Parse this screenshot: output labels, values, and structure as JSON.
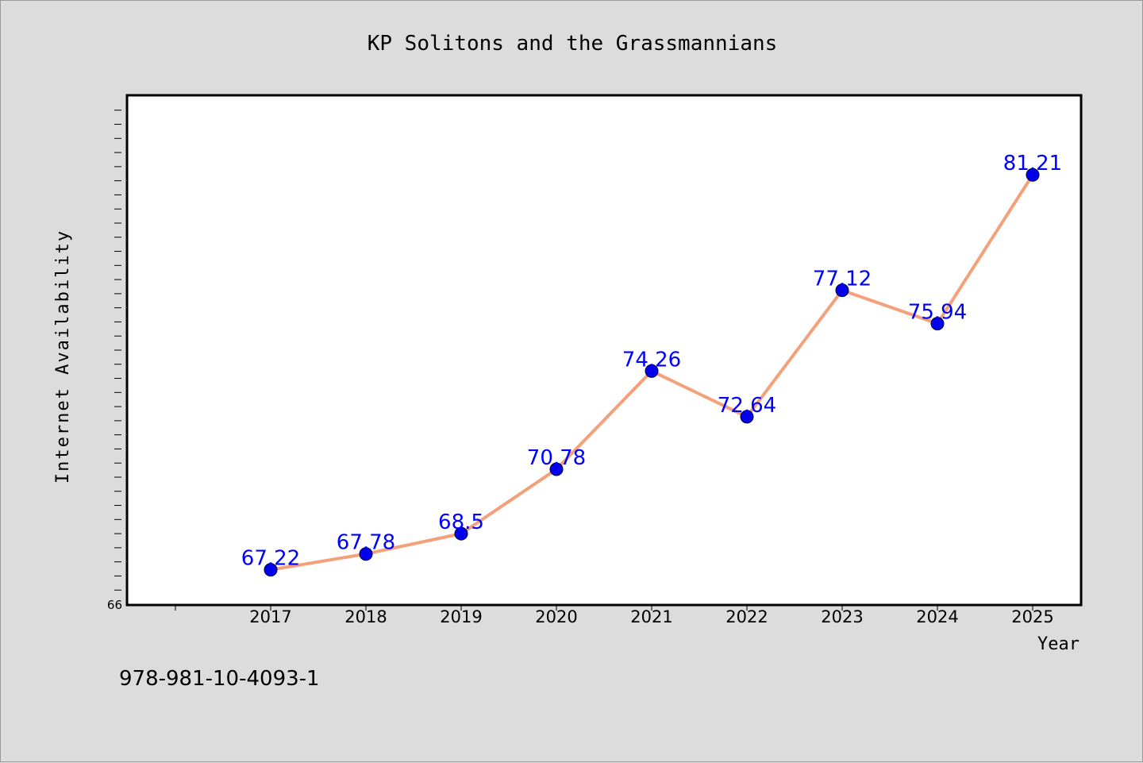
{
  "footer": {
    "isbn": "978-981-10-4093-1"
  },
  "colors": {
    "background": "#dcdcdc",
    "plot_background": "#ffffff",
    "line": "#f4a07a",
    "marker": "#0000ee",
    "data_label": "#0000ff"
  },
  "chart_data": {
    "type": "line",
    "title": "KP Solitons and the Grassmannians",
    "xlabel": "Year",
    "ylabel": "Internet Availability",
    "categories": [
      "2017",
      "2018",
      "2019",
      "2020",
      "2021",
      "2022",
      "2023",
      "2024",
      "2025"
    ],
    "series": [
      {
        "values": [
          67.22,
          67.78,
          68.5,
          70.78,
          74.26,
          72.64,
          77.12,
          75.94,
          81.21
        ]
      }
    ],
    "data_labels": [
      "67.22",
      "67.78",
      "68.5",
      "70.78",
      "74.26",
      "72.64",
      "77.12",
      "75.94",
      "81.21"
    ],
    "y_tick_labels": [
      "66"
    ],
    "ylim": [
      66,
      84
    ],
    "grid": false,
    "legend": "none"
  }
}
